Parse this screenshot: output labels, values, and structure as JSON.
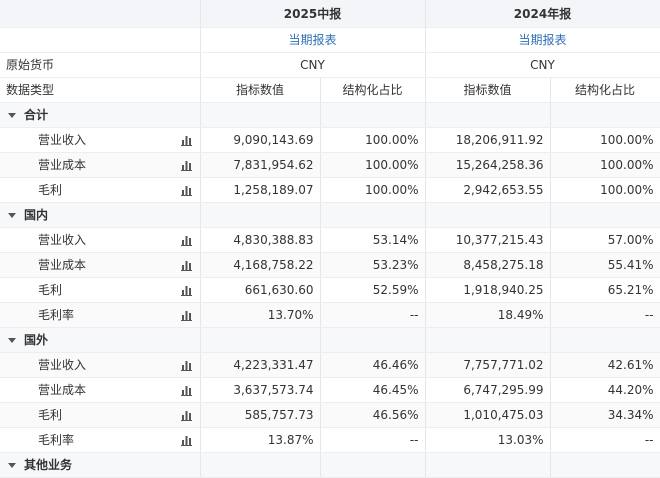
{
  "header": {
    "periods": [
      "2025中报",
      "2024年报"
    ],
    "report_types": [
      "当期报表",
      "当期报表"
    ],
    "currency_label": "原始货币",
    "currencies": [
      "CNY",
      "CNY"
    ],
    "type_label": "数据类型",
    "column_headers": [
      "指标数值",
      "结构化占比",
      "指标数值",
      "结构化占比"
    ]
  },
  "groups": [
    {
      "name": "合计",
      "rows": [
        {
          "label": "营业收入",
          "values": [
            "9,090,143.69",
            "100.00%",
            "18,206,911.92",
            "100.00%"
          ]
        },
        {
          "label": "营业成本",
          "values": [
            "7,831,954.62",
            "100.00%",
            "15,264,258.36",
            "100.00%"
          ]
        },
        {
          "label": "毛利",
          "values": [
            "1,258,189.07",
            "100.00%",
            "2,942,653.55",
            "100.00%"
          ]
        }
      ]
    },
    {
      "name": "国内",
      "rows": [
        {
          "label": "营业收入",
          "values": [
            "4,830,388.83",
            "53.14%",
            "10,377,215.43",
            "57.00%"
          ]
        },
        {
          "label": "营业成本",
          "values": [
            "4,168,758.22",
            "53.23%",
            "8,458,275.18",
            "55.41%"
          ]
        },
        {
          "label": "毛利",
          "values": [
            "661,630.60",
            "52.59%",
            "1,918,940.25",
            "65.21%"
          ]
        },
        {
          "label": "毛利率",
          "values": [
            "13.70%",
            "--",
            "18.49%",
            "--"
          ]
        }
      ]
    },
    {
      "name": "国外",
      "rows": [
        {
          "label": "营业收入",
          "values": [
            "4,223,331.47",
            "46.46%",
            "7,757,771.02",
            "42.61%"
          ]
        },
        {
          "label": "营业成本",
          "values": [
            "3,637,573.74",
            "46.45%",
            "6,747,295.99",
            "44.20%"
          ]
        },
        {
          "label": "毛利",
          "values": [
            "585,757.73",
            "46.56%",
            "1,010,475.03",
            "34.34%"
          ]
        },
        {
          "label": "毛利率",
          "values": [
            "13.87%",
            "--",
            "13.03%",
            "--"
          ]
        }
      ]
    },
    {
      "name": "其他业务",
      "rows": []
    }
  ]
}
